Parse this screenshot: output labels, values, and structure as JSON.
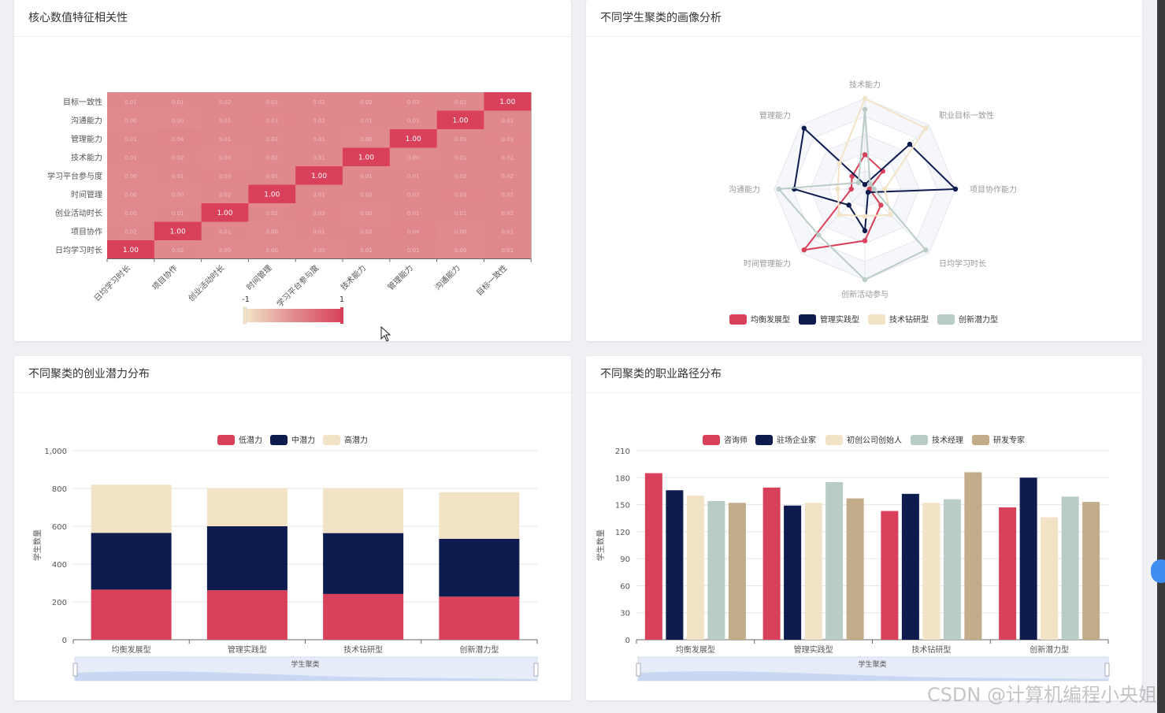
{
  "heatmap": {
    "title": "核心数值特征相关性",
    "chart_data": {
      "type": "heatmap",
      "labels": [
        "日均学习时长",
        "项目协作",
        "创业活动时长",
        "时间管理",
        "学习平台参与度",
        "技术能力",
        "管理能力",
        "沟通能力",
        "目标一致性"
      ],
      "values": [
        [
          1.0,
          0.02,
          0.0,
          0.0,
          0.0,
          0.01,
          0.01,
          0.0,
          0.01
        ],
        [
          0.02,
          1.0,
          0.01,
          0.0,
          0.01,
          0.02,
          0.04,
          0.0,
          0.01
        ],
        [
          0.0,
          0.01,
          1.0,
          0.02,
          0.03,
          0.0,
          0.01,
          0.01,
          0.02
        ],
        [
          0.0,
          0.0,
          0.02,
          1.0,
          0.01,
          0.02,
          0.02,
          0.03,
          0.01
        ],
        [
          0.0,
          0.01,
          0.03,
          0.01,
          1.0,
          0.01,
          0.01,
          0.02,
          0.02
        ],
        [
          0.01,
          0.02,
          0.0,
          0.02,
          0.01,
          1.0,
          0.0,
          0.01,
          0.02
        ],
        [
          0.01,
          0.04,
          0.01,
          0.02,
          0.01,
          0.0,
          1.0,
          0.01,
          0.03
        ],
        [
          0.0,
          0.0,
          0.01,
          0.03,
          0.02,
          0.01,
          0.01,
          1.0,
          0.01
        ],
        [
          0.01,
          0.01,
          0.02,
          0.01,
          0.02,
          0.02,
          0.03,
          0.01,
          1.0
        ]
      ],
      "diag_label": "1.00",
      "visual_map": {
        "min": "-1",
        "max": "1"
      },
      "colors": {
        "low": "#f3e3c6",
        "mid": "#e08a8e",
        "high": "#d9415a"
      }
    }
  },
  "radar": {
    "title": "不同学生聚类的画像分析",
    "chart_data": {
      "type": "radar",
      "indicators": [
        "技术能力",
        "职业目标一致性",
        "项目协作能力",
        "日均学习时长",
        "创新活动参与",
        "时间管理能力",
        "沟通能力",
        "管理能力"
      ],
      "series": [
        {
          "name": "均衡发展型",
          "color": "#d9415a",
          "values": [
            0.38,
            0.28,
            0.05,
            0.25,
            0.57,
            0.95,
            0.15,
            0.2
          ]
        },
        {
          "name": "管理实践型",
          "color": "#0d1b4f",
          "values": [
            0.05,
            0.7,
            1.0,
            0.05,
            0.46,
            0.25,
            0.78,
            0.95
          ]
        },
        {
          "name": "技术钻研型",
          "color": "#f3e3c6",
          "values": [
            1.0,
            0.95,
            0.22,
            0.4,
            0.3,
            0.4,
            0.3,
            0.4
          ]
        },
        {
          "name": "创新潜力型",
          "color": "#b9ccc6",
          "values": [
            0.88,
            0.08,
            0.1,
            0.95,
            1.0,
            0.72,
            0.95,
            0.1
          ]
        }
      ]
    }
  },
  "bar1": {
    "title": "不同聚类的创业潜力分布",
    "chart_data": {
      "type": "bar",
      "stacked": true,
      "categories": [
        "均衡发展型",
        "管理实践型",
        "技术钻研型",
        "创新潜力型"
      ],
      "series": [
        {
          "name": "低潜力",
          "color": "#d9415a",
          "values": [
            265,
            262,
            242,
            228
          ]
        },
        {
          "name": "中潜力",
          "color": "#0d1b4f",
          "values": [
            300,
            338,
            322,
            306
          ]
        },
        {
          "name": "高潜力",
          "color": "#f3e3c6",
          "values": [
            255,
            202,
            238,
            246
          ]
        }
      ],
      "ylabel": "学生数量",
      "xlabel": "学生聚类",
      "yticks": [
        "0",
        "200",
        "400",
        "600",
        "800",
        "1,000"
      ],
      "ylim": [
        0,
        1000
      ]
    }
  },
  "bar2": {
    "title": "不同聚类的职业路径分布",
    "chart_data": {
      "type": "bar",
      "categories": [
        "均衡发展型",
        "管理实践型",
        "技术钻研型",
        "创新潜力型"
      ],
      "series": [
        {
          "name": "咨询师",
          "color": "#d9415a",
          "values": [
            185,
            169,
            143,
            147
          ]
        },
        {
          "name": "驻场企业家",
          "color": "#0d1b4f",
          "values": [
            166,
            149,
            162,
            180
          ]
        },
        {
          "name": "初创公司创始人",
          "color": "#f3e3c6",
          "values": [
            160,
            152,
            152,
            136
          ]
        },
        {
          "name": "技术经理",
          "color": "#b9ccc6",
          "values": [
            154,
            175,
            156,
            159
          ]
        },
        {
          "name": "研发专家",
          "color": "#c2ac8a",
          "values": [
            152,
            157,
            186,
            153
          ]
        }
      ],
      "ylabel": "学生数量",
      "xlabel": "学生聚类",
      "yticks": [
        "0",
        "30",
        "60",
        "90",
        "120",
        "150",
        "180",
        "210"
      ],
      "ylim": [
        0,
        210
      ]
    }
  },
  "watermark": "CSDN @计算机编程小央姐"
}
